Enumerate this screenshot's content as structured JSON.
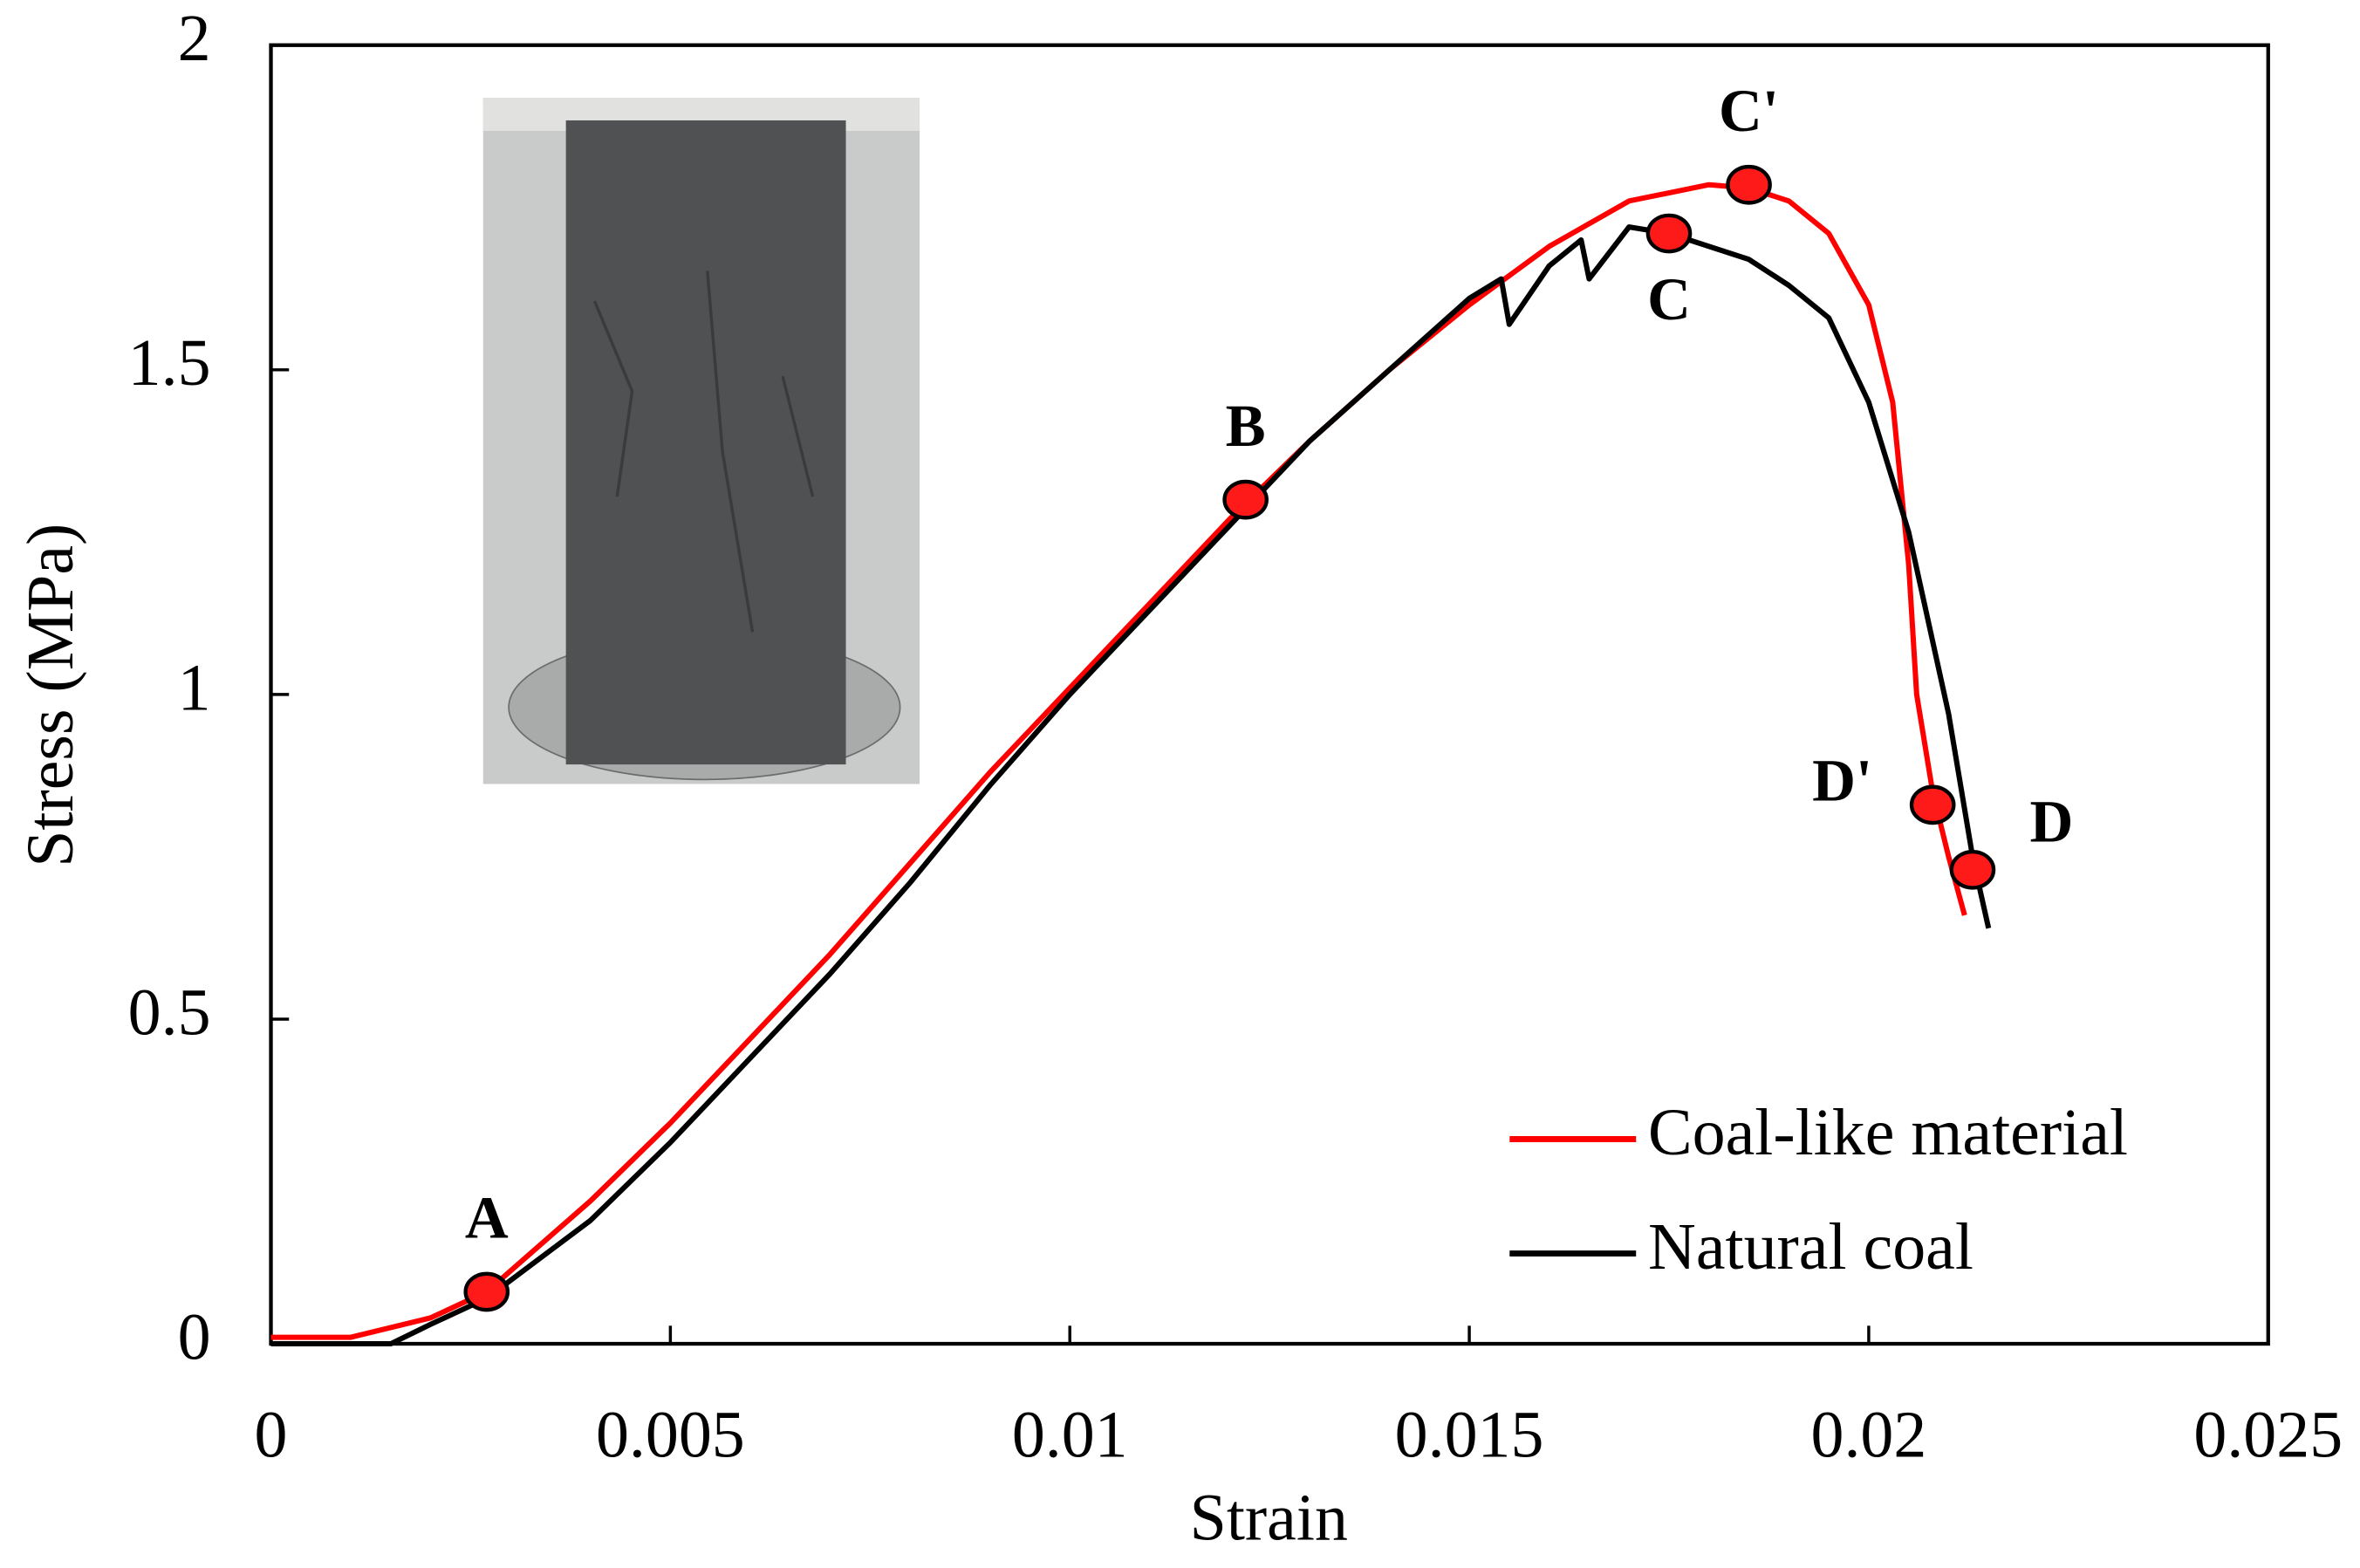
{
  "chart_data": {
    "type": "line",
    "x_label": "Strain",
    "y_label": "Stress (MPa)",
    "xlim": [
      0,
      0.025
    ],
    "xticks": [
      0,
      0.005,
      0.01,
      0.015,
      0.02,
      0.025
    ],
    "ylim": [
      0,
      2
    ],
    "yticks": [
      0,
      0.5,
      1,
      1.5,
      2
    ],
    "legend": "lower right",
    "series": [
      {
        "name": "Coal-like material",
        "color": "#ff0000",
        "x": [
          0,
          0.001,
          0.002,
          0.0027,
          0.004,
          0.005,
          0.006,
          0.007,
          0.008,
          0.009,
          0.01,
          0.011,
          0.012,
          0.013,
          0.014,
          0.015,
          0.016,
          0.017,
          0.018,
          0.0185,
          0.019,
          0.0195,
          0.02,
          0.0203,
          0.0205,
          0.0206,
          0.0208,
          0.021,
          0.0212
        ],
        "values": [
          0.01,
          0.01,
          0.04,
          0.08,
          0.22,
          0.34,
          0.47,
          0.6,
          0.74,
          0.88,
          1.01,
          1.14,
          1.27,
          1.39,
          1.5,
          1.6,
          1.69,
          1.76,
          1.785,
          1.78,
          1.76,
          1.71,
          1.6,
          1.45,
          1.2,
          1.0,
          0.85,
          0.75,
          0.66
        ]
      },
      {
        "name": "Natural coal",
        "color": "#000000",
        "x": [
          0,
          0.0015,
          0.002,
          0.0027,
          0.004,
          0.005,
          0.006,
          0.007,
          0.008,
          0.009,
          0.01,
          0.011,
          0.012,
          0.013,
          0.014,
          0.015,
          0.0154,
          0.0155,
          0.016,
          0.0164,
          0.0165,
          0.017,
          0.0175,
          0.018,
          0.0185,
          0.019,
          0.0195,
          0.02,
          0.0205,
          0.021,
          0.0213,
          0.0215
        ],
        "values": [
          0,
          0,
          0.03,
          0.07,
          0.19,
          0.31,
          0.44,
          0.57,
          0.71,
          0.86,
          1.0,
          1.13,
          1.26,
          1.39,
          1.5,
          1.61,
          1.64,
          1.57,
          1.66,
          1.7,
          1.64,
          1.72,
          1.71,
          1.69,
          1.67,
          1.63,
          1.58,
          1.45,
          1.25,
          0.97,
          0.75,
          0.64
        ]
      }
    ],
    "points": [
      {
        "label": "A",
        "x": 0.0027,
        "y": 0.08,
        "label_position": "above"
      },
      {
        "label": "B",
        "x": 0.0122,
        "y": 1.3,
        "label_position": "above"
      },
      {
        "label": "C",
        "x": 0.0175,
        "y": 1.71,
        "label_position": "below"
      },
      {
        "label": "C'",
        "x": 0.0185,
        "y": 1.785,
        "label_position": "above"
      },
      {
        "label": "D'",
        "x": 0.0208,
        "y": 0.83,
        "label_position": "left"
      },
      {
        "label": "D",
        "x": 0.0213,
        "y": 0.73,
        "label_position": "right"
      }
    ]
  }
}
